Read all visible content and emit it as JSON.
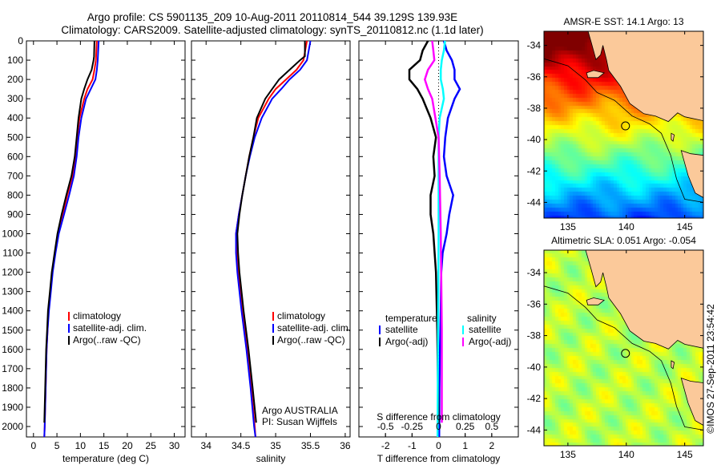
{
  "title_line1": "Argo profile: CS 5901135_209 10-Aug-2011 20110814_544 39.129S 139.93E",
  "title_line2": "Climatology: CARS2009. Satellite-adjusted climatology: synTS_20110812.nc (1.1d later)",
  "footer_stamp": "©IMOS 27-Sep-2011 23:54:42",
  "colors": {
    "climatology": "#ff0000",
    "satellite": "#0000ff",
    "argo": "#000000",
    "salinity_satellite": "#00ffff",
    "salinity_argo": "#ff00ff",
    "land": "#fbc99a"
  },
  "chart_data": [
    {
      "type": "line",
      "id": "temperature",
      "xlabel": "temperature (deg C)",
      "ylabel": "",
      "xlim": [
        -1.5,
        32.3
      ],
      "ylim": [
        0,
        2054
      ],
      "xticks": [
        0,
        5,
        10,
        15,
        20,
        25,
        30
      ],
      "xtick_labels": [
        "0",
        "5",
        "10",
        "15",
        "20",
        "25",
        "30"
      ],
      "yticks": [
        0,
        100,
        200,
        300,
        400,
        500,
        600,
        700,
        800,
        900,
        1000,
        1100,
        1200,
        1300,
        1400,
        1500,
        1600,
        1700,
        1800,
        1900,
        2000
      ],
      "ytick_labels": [
        "0",
        "100",
        "200",
        "300",
        "400",
        "500",
        "600",
        "700",
        "800",
        "900",
        "1000",
        "1100",
        "1200",
        "1300",
        "1400",
        "1500",
        "1600",
        "1700",
        "1800",
        "1900",
        "2000"
      ],
      "legend": [
        "climatology",
        "satellite-adj. clim.",
        "Argo(..raw -QC)"
      ],
      "series": [
        {
          "name": "climatology",
          "color": "#ff0000",
          "depth": [
            0,
            100,
            150,
            200,
            250,
            300,
            400,
            500,
            600,
            700,
            800,
            900,
            1000,
            1100,
            1200,
            1300,
            1400,
            1500,
            1600,
            1800,
            2000,
            2054
          ],
          "values": [
            13.5,
            13.3,
            13.0,
            12.6,
            11.5,
            10.8,
            9.8,
            9.3,
            9.0,
            8.3,
            7.2,
            6.2,
            5.2,
            4.6,
            4.0,
            3.6,
            3.2,
            3.0,
            2.8,
            2.6,
            2.4,
            2.3
          ]
        },
        {
          "name": "satellite-adj. clim.",
          "color": "#0000ff",
          "depth": [
            0,
            100,
            150,
            200,
            250,
            300,
            400,
            500,
            600,
            700,
            800,
            900,
            1000,
            1100,
            1200,
            1300,
            1400,
            1500,
            1600,
            1800,
            2000,
            2054
          ],
          "values": [
            13.9,
            13.7,
            13.5,
            13.2,
            12.2,
            11.2,
            10.2,
            9.6,
            9.2,
            8.6,
            7.6,
            6.5,
            5.4,
            4.7,
            4.1,
            3.7,
            3.3,
            3.0,
            2.8,
            2.6,
            2.4,
            2.3
          ]
        },
        {
          "name": "Argo(..raw -QC)",
          "color": "#000000",
          "depth": [
            0,
            80,
            100,
            150,
            200,
            250,
            300,
            400,
            500,
            600,
            700,
            800,
            900,
            1000,
            1100,
            1200,
            1300,
            1400,
            1500,
            1600,
            1800,
            1980
          ],
          "values": [
            13.0,
            12.9,
            12.8,
            12.4,
            11.5,
            10.8,
            10.2,
            9.6,
            9.2,
            8.8,
            8.1,
            7.0,
            6.0,
            5.1,
            4.5,
            3.9,
            3.5,
            3.1,
            2.9,
            2.7,
            2.5,
            2.3
          ]
        }
      ]
    },
    {
      "type": "line",
      "id": "salinity",
      "xlabel": "salinity",
      "xlim": [
        33.79,
        36.07
      ],
      "ylim": [
        0,
        2054
      ],
      "xticks": [
        34,
        34.5,
        35,
        35.5,
        36
      ],
      "xtick_labels": [
        "34",
        "34.5",
        "35",
        "35.5",
        "36"
      ],
      "legend": [
        "climatology",
        "satellite-adj. clim.",
        "Argo(..raw -QC)"
      ],
      "annotation": [
        "Argo AUSTRALIA",
        "PI: Susan Wijffels"
      ],
      "series": [
        {
          "name": "climatology",
          "color": "#ff0000",
          "depth": [
            0,
            100,
            150,
            200,
            250,
            300,
            400,
            500,
            600,
            700,
            800,
            900,
            1000,
            1100,
            1200,
            1400,
            1600,
            1800,
            2000,
            2054
          ],
          "values": [
            35.45,
            35.4,
            35.3,
            35.15,
            35.0,
            34.9,
            34.75,
            34.68,
            34.62,
            34.57,
            34.52,
            34.47,
            34.43,
            34.44,
            34.46,
            34.52,
            34.59,
            34.65,
            34.7,
            34.71
          ]
        },
        {
          "name": "satellite-adj. clim.",
          "color": "#0000ff",
          "depth": [
            0,
            100,
            150,
            200,
            250,
            300,
            400,
            500,
            600,
            700,
            800,
            900,
            1000,
            1100,
            1200,
            1400,
            1600,
            1800,
            2000,
            2054
          ],
          "values": [
            35.5,
            35.45,
            35.35,
            35.2,
            35.08,
            34.95,
            34.8,
            34.7,
            34.63,
            34.57,
            34.52,
            34.47,
            34.43,
            34.43,
            34.45,
            34.51,
            34.58,
            34.64,
            34.69,
            34.71
          ]
        },
        {
          "name": "Argo(..raw -QC)",
          "color": "#000000",
          "depth": [
            0,
            80,
            100,
            150,
            200,
            250,
            300,
            400,
            500,
            600,
            700,
            800,
            900,
            1000,
            1100,
            1200,
            1400,
            1600,
            1800,
            1980
          ],
          "values": [
            35.42,
            35.42,
            35.35,
            35.2,
            35.05,
            34.95,
            34.85,
            34.73,
            34.68,
            34.62,
            34.57,
            34.52,
            34.48,
            34.45,
            34.46,
            34.48,
            34.54,
            34.61,
            34.67,
            34.72
          ]
        }
      ]
    },
    {
      "type": "line",
      "id": "difference",
      "xlabel": "T difference from climatology",
      "xlim": [
        -3,
        3
      ],
      "ylim": [
        0,
        2054
      ],
      "xticks": [
        -2,
        -1,
        0,
        1,
        2
      ],
      "xtick_labels": [
        "-2",
        "-1",
        "0",
        "1",
        "2"
      ],
      "s_axis_label": "S difference from climatology",
      "s_xlim": [
        -0.75,
        0.75
      ],
      "s_xticks": [
        -0.5,
        -0.25,
        0,
        0.25,
        0.5
      ],
      "s_xtick_labels": [
        "-0.5",
        "-0.25",
        "0",
        "0.25",
        "0.5"
      ],
      "legend_headers": [
        "temperature",
        "salinity"
      ],
      "legend": [
        "satellite",
        "Argo(-adj)",
        "satellite",
        "Argo(-adj)"
      ],
      "series": [
        {
          "name": "temperature satellite",
          "axis": "T",
          "color": "#0000ff",
          "depth": [
            0,
            50,
            100,
            150,
            200,
            250,
            300,
            400,
            500,
            600,
            700,
            800,
            900,
            1000,
            1100,
            1200,
            1400,
            1600,
            1800,
            2054
          ],
          "values": [
            0.2,
            0.3,
            0.5,
            0.6,
            0.6,
            0.8,
            0.6,
            0.35,
            0.25,
            0.2,
            0.3,
            0.55,
            0.4,
            0.3,
            0.15,
            0.1,
            0.08,
            0.05,
            0.03,
            0.02
          ]
        },
        {
          "name": "temperature Argo(-adj)",
          "axis": "T",
          "color": "#000000",
          "depth": [
            0,
            50,
            100,
            150,
            200,
            250,
            300,
            400,
            500,
            600,
            700,
            800,
            900,
            1000,
            1200,
            1500,
            1800,
            1980
          ],
          "values": [
            -0.4,
            -0.6,
            -0.7,
            -1.1,
            -1.1,
            -0.8,
            -0.6,
            -0.3,
            -0.1,
            -0.2,
            -0.15,
            -0.3,
            -0.3,
            -0.2,
            -0.1,
            -0.05,
            -0.02,
            0
          ]
        },
        {
          "name": "salinity satellite",
          "axis": "S",
          "color": "#00ffff",
          "depth": [
            0,
            50,
            100,
            150,
            200,
            250,
            300,
            400,
            500,
            700,
            1000,
            1500,
            2054
          ],
          "values": [
            0.06,
            0.05,
            0.03,
            0.02,
            0.02,
            0.04,
            0.05,
            0.01,
            0.0,
            0.0,
            0.0,
            -0.005,
            -0.01
          ]
        },
        {
          "name": "salinity Argo(-adj)",
          "axis": "S",
          "color": "#ff00ff",
          "depth": [
            0,
            50,
            100,
            150,
            200,
            250,
            300,
            400,
            500,
            700,
            1000,
            1500,
            1980
          ],
          "values": [
            -0.06,
            -0.05,
            -0.04,
            -0.1,
            -0.13,
            -0.1,
            -0.06,
            -0.03,
            0.0,
            0.01,
            0.02,
            0.03,
            0.03
          ]
        }
      ]
    }
  ],
  "maps": [
    {
      "id": "sst",
      "title": "AMSR-E SST: 14.1 Argo: 13",
      "lon_ticks": [
        135,
        140,
        145
      ],
      "lon_labels": [
        "135",
        "140",
        "145"
      ],
      "lat_ticks": [
        -34,
        -36,
        -38,
        -40,
        -42,
        -44
      ],
      "lat_labels": [
        "-34",
        "-36",
        "-38",
        "-40",
        "-42",
        "-44"
      ],
      "float_position": [
        139.93,
        -39.129
      ]
    },
    {
      "id": "sla",
      "title": "Altimetric SLA: 0.051 Argo: -0.054",
      "lon_ticks": [
        135,
        140,
        145
      ],
      "lon_labels": [
        "135",
        "140",
        "145"
      ],
      "lat_ticks": [
        -34,
        -36,
        -38,
        -40,
        -42,
        -44
      ],
      "lat_labels": [
        "-34",
        "-36",
        "-38",
        "-40",
        "-42",
        "-44"
      ],
      "float_position": [
        139.93,
        -39.129
      ]
    }
  ]
}
